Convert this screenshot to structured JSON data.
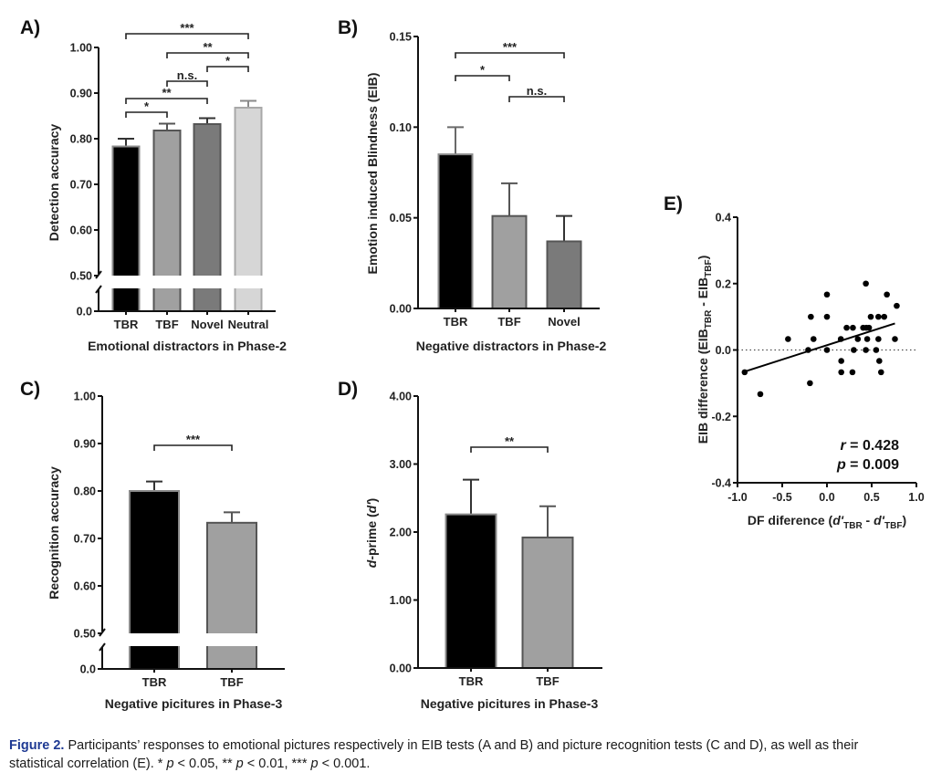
{
  "caption": {
    "label": "Figure 2.",
    "line1": " Participants’ responses to emotional pictures respectively in EIB tests (A and B) and picture recognition tests (C and D), as well as their",
    "line2_prefix": "statistical correlation (E). * ",
    "p1": "p",
    "t1": " < 0.05, ** ",
    "p2": "p",
    "t2": " < 0.01, *** ",
    "p3": "p",
    "t3": " < 0.001."
  },
  "colors": {
    "black_bar": "#000000",
    "tbf_bar": "#a0a0a0",
    "novel_bar": "#7a7a7a",
    "neutral_bar": "#d6d6d6",
    "caption_label": "#1f3a93"
  },
  "chart_data": [
    {
      "panel": "A)",
      "type": "bar",
      "title": "",
      "xlabel": "Emotional distractors in Phase-2",
      "ylabel": "Detection accuracy",
      "categories": [
        "TBR",
        "TBF",
        "Novel",
        "Neutral"
      ],
      "values": [
        0.783,
        0.818,
        0.832,
        0.868
      ],
      "error_upper": [
        0.8,
        0.833,
        0.845,
        0.883
      ],
      "colors": [
        "#000000",
        "#a0a0a0",
        "#7a7a7a",
        "#d6d6d6"
      ],
      "y_ticks": [
        "1.00",
        "0.90",
        "0.80",
        "0.70",
        "0.60",
        "0.50",
        "0.0"
      ],
      "ylim": [
        0.0,
        1.0
      ],
      "axis_break": [
        0.0,
        0.5
      ],
      "significance": [
        {
          "from": "TBR",
          "to": "Neutral",
          "label": "***"
        },
        {
          "from": "TBF",
          "to": "Neutral",
          "label": "**"
        },
        {
          "from": "Novel",
          "to": "Neutral",
          "label": "*"
        },
        {
          "from": "TBF",
          "to": "Novel",
          "label": "n.s."
        },
        {
          "from": "TBR",
          "to": "Novel",
          "label": "**"
        },
        {
          "from": "TBR",
          "to": "TBF",
          "label": "*"
        }
      ]
    },
    {
      "panel": "B)",
      "type": "bar",
      "title": "",
      "xlabel": "Negative distractors in Phase-2",
      "ylabel": "Emotion induced Blindness (EIB)",
      "categories": [
        "TBR",
        "TBF",
        "Novel"
      ],
      "values": [
        0.085,
        0.051,
        0.037
      ],
      "error_upper": [
        0.1,
        0.069,
        0.051
      ],
      "colors": [
        "#000000",
        "#a0a0a0",
        "#7a7a7a"
      ],
      "y_ticks": [
        "0.15",
        "0.10",
        "0.05",
        "0.00"
      ],
      "ylim": [
        0.0,
        0.15
      ],
      "significance": [
        {
          "from": "TBR",
          "to": "Novel",
          "label": "***"
        },
        {
          "from": "TBR",
          "to": "TBF",
          "label": "*"
        },
        {
          "from": "TBF",
          "to": "Novel",
          "label": "n.s."
        }
      ]
    },
    {
      "panel": "C)",
      "type": "bar",
      "title": "",
      "xlabel": "Negative picitures in Phase-3",
      "ylabel": "Recognition accuracy",
      "categories": [
        "TBR",
        "TBF"
      ],
      "values": [
        0.8,
        0.733
      ],
      "error_upper": [
        0.82,
        0.755
      ],
      "colors": [
        "#000000",
        "#a0a0a0"
      ],
      "y_ticks": [
        "1.00",
        "0.90",
        "0.80",
        "0.70",
        "0.60",
        "0.50",
        "0.0"
      ],
      "ylim": [
        0.0,
        1.0
      ],
      "axis_break": [
        0.0,
        0.5
      ],
      "significance": [
        {
          "from": "TBR",
          "to": "TBF",
          "label": "***"
        }
      ]
    },
    {
      "panel": "D)",
      "type": "bar",
      "title": "",
      "xlabel": "Negative picitures in Phase-3",
      "ylabel_italic": "d",
      "ylabel": "-prime (",
      "ylabel_italic2": "d'",
      "ylabel_end": ")",
      "categories": [
        "TBR",
        "TBF"
      ],
      "values": [
        2.26,
        1.92
      ],
      "error_upper": [
        2.77,
        2.38
      ],
      "colors": [
        "#000000",
        "#a0a0a0"
      ],
      "y_ticks": [
        "4.00",
        "3.00",
        "2.00",
        "1.00",
        "0.00"
      ],
      "ylim": [
        0.0,
        4.0
      ],
      "significance": [
        {
          "from": "TBR",
          "to": "TBF",
          "label": "**"
        }
      ]
    },
    {
      "panel": "E)",
      "type": "scatter",
      "title": "",
      "xlabel_prefix": "DF diference (",
      "xlabel_d1": "d'",
      "xlabel_sub1": "TBR",
      "xlabel_mid": " - ",
      "xlabel_d2": "d'",
      "xlabel_sub2": "TBF",
      "xlabel_end": ")",
      "ylabel_prefix": "EIB difference (EIB",
      "ylabel_sub1": "TBR",
      "ylabel_mid": " - EIB",
      "ylabel_sub2": "TBF",
      "ylabel_end": ")",
      "x_ticks": [
        "-1.0",
        "-0.5",
        "0.0",
        "0.5",
        "1.0"
      ],
      "y_ticks": [
        "0.4",
        "0.2",
        "0.0",
        "-0.2",
        "-0.4"
      ],
      "xlim": [
        -1.0,
        1.0
      ],
      "ylim": [
        -0.4,
        0.4
      ],
      "reference_line_y": 0.0,
      "points": [
        [
          -0.92,
          -0.067
        ],
        [
          -0.745,
          -0.133
        ],
        [
          -0.435,
          0.033
        ],
        [
          -0.18,
          0.1
        ],
        [
          -0.21,
          0.0
        ],
        [
          -0.15,
          0.033
        ],
        [
          -0.19,
          -0.1
        ],
        [
          0.0,
          0.167
        ],
        [
          0.0,
          0.1
        ],
        [
          0.0,
          0.0
        ],
        [
          0.435,
          0.2
        ],
        [
          0.67,
          0.167
        ],
        [
          0.78,
          0.133
        ],
        [
          0.49,
          0.1
        ],
        [
          0.575,
          0.1
        ],
        [
          0.64,
          0.1
        ],
        [
          0.22,
          0.067
        ],
        [
          0.29,
          0.067
        ],
        [
          0.405,
          0.067
        ],
        [
          0.44,
          0.067
        ],
        [
          0.47,
          0.067
        ],
        [
          0.155,
          0.033
        ],
        [
          0.345,
          0.033
        ],
        [
          0.45,
          0.033
        ],
        [
          0.575,
          0.033
        ],
        [
          0.76,
          0.033
        ],
        [
          0.3,
          0.0
        ],
        [
          0.435,
          0.0
        ],
        [
          0.55,
          0.0
        ],
        [
          0.16,
          -0.033
        ],
        [
          0.585,
          -0.033
        ],
        [
          0.16,
          -0.067
        ],
        [
          0.285,
          -0.067
        ],
        [
          0.605,
          -0.067
        ]
      ],
      "fit_line": {
        "x": [
          -0.92,
          0.76
        ],
        "y": [
          -0.065,
          0.08
        ]
      },
      "annotation": {
        "r_label": "r",
        "r_value": " = 0.428",
        "p_label": "p",
        "p_value": " = 0.009"
      }
    }
  ]
}
